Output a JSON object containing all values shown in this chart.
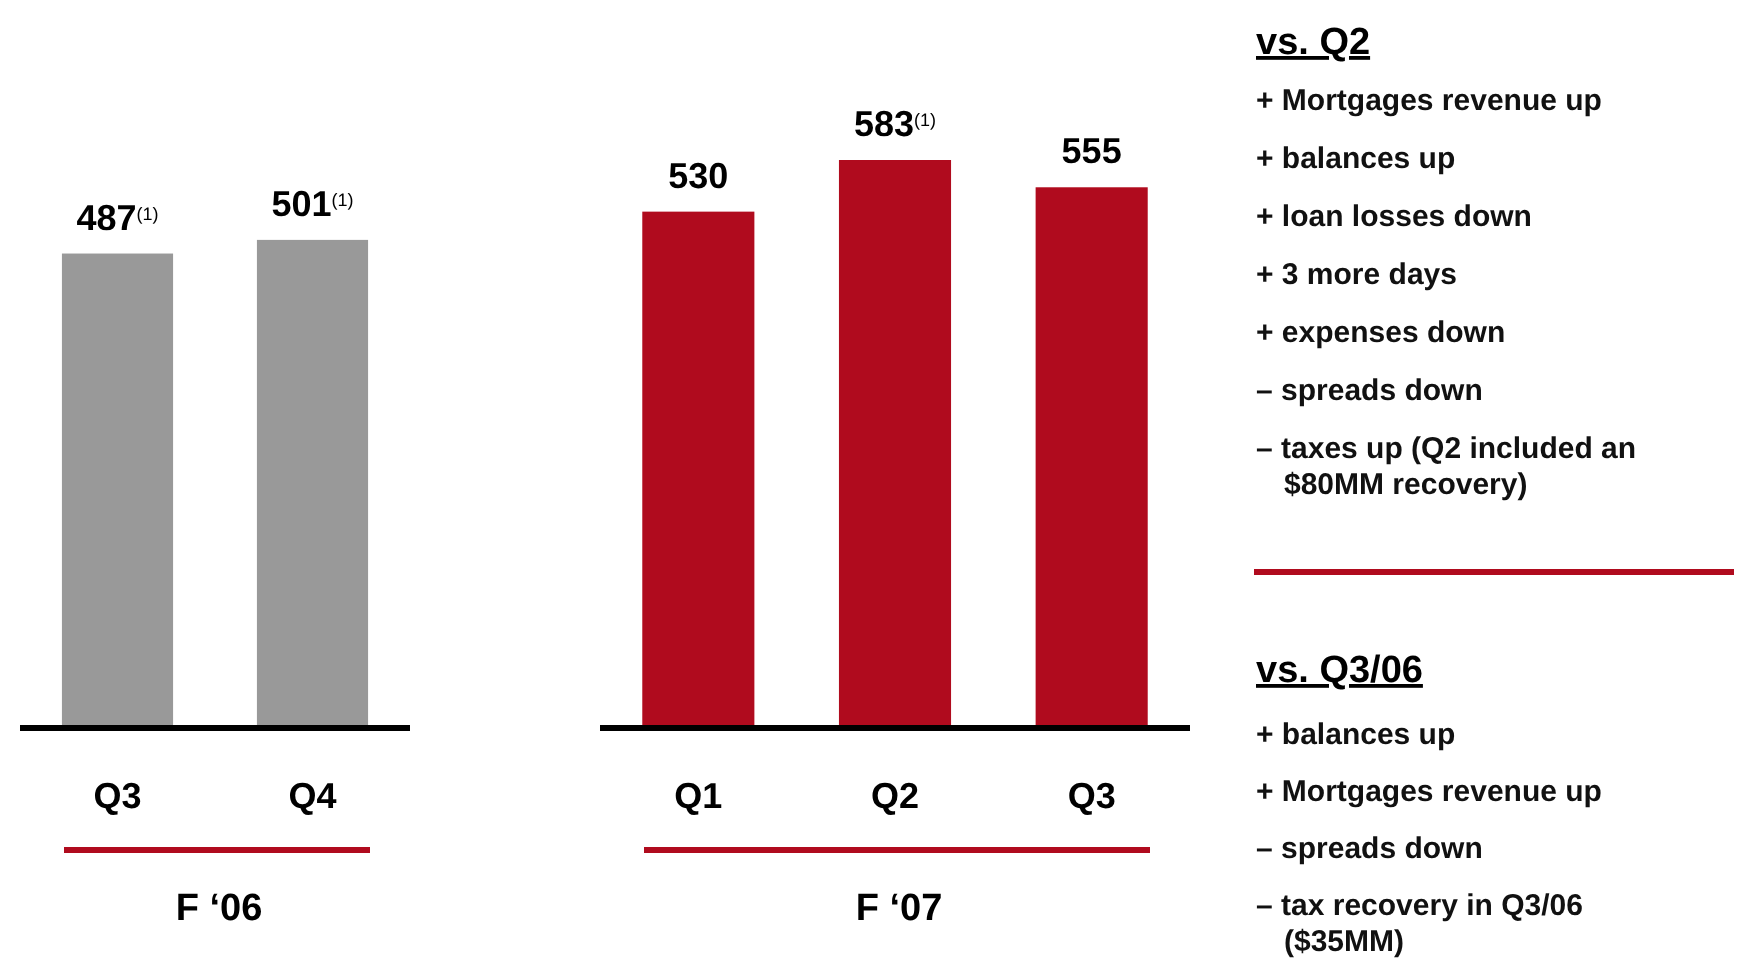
{
  "chart_data": [
    {
      "type": "bar",
      "title": "F ‘06",
      "categories": [
        "Q3",
        "Q4"
      ],
      "values": [
        487,
        501
      ],
      "colors": [
        "#999999",
        "#999999"
      ],
      "value_labels": [
        "487$^{(1)}$",
        "501$^{(1)}$"
      ]
    },
    {
      "type": "bar",
      "title": "F ‘07",
      "categories": [
        "Q1",
        "Q2",
        "Q3"
      ],
      "values": [
        530,
        583,
        555
      ],
      "colors": [
        "#b00b1e",
        "#b00b1e",
        "#b00b1e"
      ],
      "value_labels": [
        "530",
        "583$^{(1)}$",
        "555"
      ]
    },
    {
      "type": "other",
      "title": "vs. Q2",
      "annotations": [
        "+ Mortgages revenue up",
        "+ balances up",
        "+ loan losses down",
        "+ 3 more days",
        "+ expenses down",
        "– spreads down",
        "– taxes up (Q2 included an $80MM recovery)"
      ]
    },
    {
      "type": "other",
      "title": "vs. Q3/06",
      "annotations": [
        "+ balances up",
        "+ Mortgages revenue up",
        "– spreads down",
        "– tax recovery in Q3/06 ($35MM)"
      ]
    }
  ]
}
